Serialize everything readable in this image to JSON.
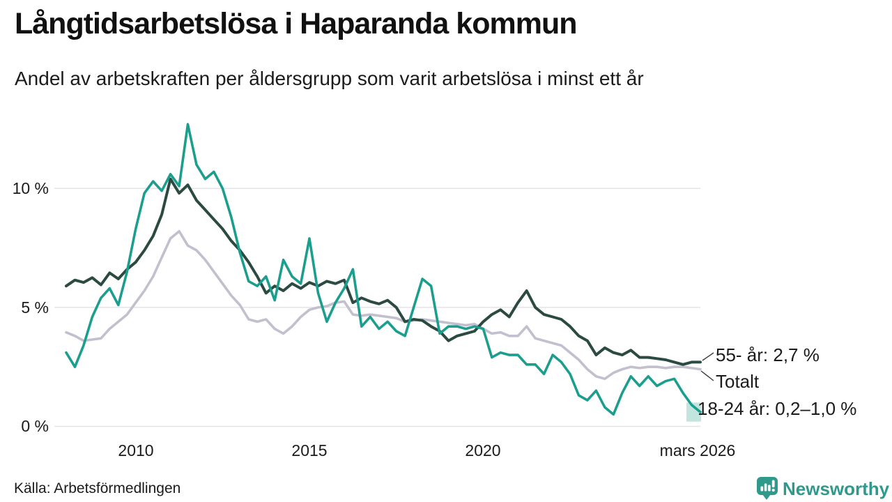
{
  "header": {
    "title": "Långtidsarbetslösa i Haparanda kommun",
    "subtitle": "Andel av arbetskraften per åldersgrupp som varit arbetslösa i minst ett år"
  },
  "chart_data": {
    "type": "line",
    "title": "Långtidsarbetslösa i Haparanda kommun",
    "subtitle": "Andel av arbetskraften per åldersgrupp som varit arbetslösa i minst ett år",
    "unit": "% av arbetskraften",
    "x_start": 2008.0,
    "x_step": 0.25,
    "x_end": 2026.25,
    "ylim": [
      0,
      13.5
    ],
    "grid": "horizontal",
    "legend_position": "end-of-line-labels",
    "x_ticks": [
      {
        "value": 2010,
        "label": "2010"
      },
      {
        "value": 2015,
        "label": "2015"
      },
      {
        "value": 2020,
        "label": "2020"
      },
      {
        "value": 2026.17,
        "label": "mars 2026"
      }
    ],
    "y_ticks": [
      {
        "value": 0,
        "label": "0 %"
      },
      {
        "value": 5,
        "label": "5 %"
      },
      {
        "value": 10,
        "label": "10 %"
      }
    ],
    "series": [
      {
        "name": "18-24 år",
        "color": "#1b9e8e",
        "values": [
          3.1,
          2.5,
          3.4,
          4.6,
          5.4,
          5.8,
          5.1,
          6.5,
          8.3,
          9.8,
          10.3,
          9.9,
          10.6,
          10.1,
          12.7,
          11.0,
          10.4,
          10.7,
          10.0,
          8.8,
          7.3,
          6.1,
          5.9,
          6.3,
          5.3,
          7.0,
          6.3,
          6.0,
          7.9,
          5.6,
          4.4,
          5.2,
          5.8,
          6.6,
          4.2,
          4.6,
          4.1,
          4.4,
          4.0,
          3.8,
          5.0,
          6.2,
          5.9,
          3.9,
          4.2,
          4.2,
          4.1,
          4.2,
          4.1,
          2.9,
          3.1,
          3.0,
          3.0,
          2.6,
          2.6,
          2.2,
          3.0,
          2.7,
          2.2,
          1.3,
          1.1,
          1.5,
          0.8,
          0.5,
          1.4,
          2.1,
          1.7,
          2.1,
          1.7,
          1.9,
          2.0,
          1.4,
          0.9,
          0.6
        ]
      },
      {
        "name": "55- år",
        "color": "#2b4a41",
        "values": [
          5.9,
          6.15,
          6.05,
          6.25,
          5.95,
          6.45,
          6.2,
          6.6,
          6.9,
          7.4,
          8.0,
          8.9,
          10.4,
          9.8,
          10.15,
          9.5,
          9.1,
          8.7,
          8.3,
          7.8,
          7.4,
          6.9,
          6.3,
          5.6,
          5.9,
          5.7,
          6.0,
          5.8,
          6.05,
          5.9,
          6.1,
          6.0,
          6.15,
          5.2,
          5.4,
          5.25,
          5.15,
          5.3,
          5.0,
          4.4,
          4.5,
          4.45,
          4.2,
          4.0,
          3.6,
          3.8,
          3.9,
          4.0,
          4.4,
          4.7,
          4.9,
          4.6,
          5.2,
          5.7,
          5.0,
          4.7,
          4.6,
          4.5,
          4.2,
          3.8,
          3.6,
          3.0,
          3.3,
          3.1,
          3.0,
          3.2,
          2.9,
          2.9,
          2.85,
          2.8,
          2.7,
          2.6,
          2.7,
          2.7
        ]
      },
      {
        "name": "Totalt",
        "color": "#c2bfce",
        "values": [
          3.95,
          3.8,
          3.6,
          3.65,
          3.7,
          4.1,
          4.4,
          4.7,
          5.2,
          5.7,
          6.3,
          7.1,
          7.9,
          8.2,
          7.6,
          7.4,
          7.0,
          6.5,
          6.0,
          5.5,
          5.1,
          4.5,
          4.4,
          4.5,
          4.1,
          3.9,
          4.2,
          4.6,
          4.9,
          5.0,
          5.05,
          5.2,
          5.25,
          4.7,
          4.65,
          4.7,
          4.65,
          4.6,
          4.55,
          4.4,
          4.45,
          4.5,
          4.45,
          4.4,
          4.35,
          4.3,
          4.25,
          4.3,
          4.1,
          3.9,
          3.95,
          3.8,
          3.8,
          4.2,
          3.7,
          3.6,
          3.5,
          3.4,
          3.1,
          2.8,
          2.4,
          2.1,
          2.0,
          2.25,
          2.4,
          2.5,
          2.45,
          2.5,
          2.5,
          2.45,
          2.5,
          2.5,
          2.45,
          2.4
        ]
      }
    ],
    "uncertainty": {
      "series": "18-24 år",
      "low": 0.2,
      "high": 1.0,
      "color": "#8fd0c7"
    },
    "annotations": [
      {
        "series": "55- år",
        "label": "55- år: 2,7 %",
        "latest_value": "2,7 %"
      },
      {
        "series": "Totalt",
        "label": "Totalt"
      },
      {
        "series": "18-24 år",
        "label": "18-24 år: 0,2–1,0 %",
        "latest_value": "0,2–1,0 %"
      }
    ]
  },
  "footer": {
    "source": "Källa: Arbetsförmedlingen",
    "brand": "Newsworthy"
  }
}
